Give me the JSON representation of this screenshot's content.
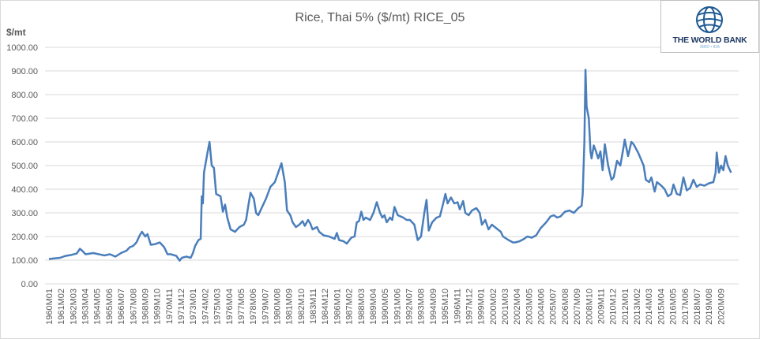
{
  "chart_data": {
    "type": "line",
    "title": "Rice, Thai 5%  ($/mt) RICE_05",
    "ylabel": "$/mt",
    "xlabel": "",
    "ylim": [
      0,
      1000
    ],
    "yticks": [
      "0.00",
      "100.00",
      "200.00",
      "300.00",
      "400.00",
      "500.00",
      "600.00",
      "700.00",
      "800.00",
      "900.00",
      "1000.00"
    ],
    "grid": "horizontal",
    "xticks": [
      "1960M01",
      "1961M02",
      "1962M03",
      "1963M04",
      "1964M05",
      "1965M06",
      "1966M07",
      "1967M08",
      "1968M09",
      "1969M10",
      "1970M11",
      "1971M12",
      "1973M01",
      "1974M02",
      "1975M03",
      "1976M04",
      "1977M05",
      "1978M06",
      "1979M07",
      "1980M08",
      "1981M09",
      "1982M10",
      "1983M11",
      "1984M12",
      "1986M01",
      "1987M02",
      "1988M03",
      "1989M04",
      "1990M05",
      "1991M06",
      "1992M07",
      "1993M08",
      "1994M09",
      "1995M10",
      "1996M11",
      "1997M12",
      "1999M01",
      "2000M02",
      "2001M03",
      "2002M04",
      "2003M05",
      "2004M06",
      "2005M07",
      "2006M08",
      "2007M09",
      "2008M10",
      "2009M11",
      "2010M12",
      "2012M01",
      "2013M02",
      "2014M03",
      "2015M04",
      "2016M05",
      "2017M06",
      "2018M07",
      "2019M08",
      "2020M09"
    ],
    "series": [
      {
        "name": "RICE_05",
        "color": "#4a7ebb",
        "points_year_value": [
          [
            1960.0,
            105
          ],
          [
            1961.0,
            110
          ],
          [
            1961.5,
            118
          ],
          [
            1962.0,
            122
          ],
          [
            1962.5,
            128
          ],
          [
            1962.8,
            148
          ],
          [
            1963.0,
            140
          ],
          [
            1963.3,
            125
          ],
          [
            1964.0,
            130
          ],
          [
            1965.0,
            120
          ],
          [
            1965.5,
            125
          ],
          [
            1966.0,
            115
          ],
          [
            1966.5,
            130
          ],
          [
            1967.0,
            140
          ],
          [
            1967.3,
            155
          ],
          [
            1967.6,
            160
          ],
          [
            1967.9,
            175
          ],
          [
            1968.2,
            205
          ],
          [
            1968.4,
            220
          ],
          [
            1968.7,
            200
          ],
          [
            1968.9,
            210
          ],
          [
            1969.2,
            165
          ],
          [
            1969.6,
            168
          ],
          [
            1970.0,
            175
          ],
          [
            1970.4,
            155
          ],
          [
            1970.7,
            125
          ],
          [
            1971.0,
            125
          ],
          [
            1971.5,
            118
          ],
          [
            1971.8,
            98
          ],
          [
            1972.0,
            110
          ],
          [
            1972.4,
            115
          ],
          [
            1972.8,
            110
          ],
          [
            1973.0,
            130
          ],
          [
            1973.2,
            160
          ],
          [
            1973.5,
            185
          ],
          [
            1973.7,
            190
          ],
          [
            1973.8,
            370
          ],
          [
            1973.9,
            340
          ],
          [
            1974.0,
            470
          ],
          [
            1974.3,
            550
          ],
          [
            1974.5,
            600
          ],
          [
            1974.7,
            500
          ],
          [
            1974.9,
            490
          ],
          [
            1975.1,
            380
          ],
          [
            1975.5,
            370
          ],
          [
            1975.7,
            305
          ],
          [
            1975.9,
            335
          ],
          [
            1976.1,
            280
          ],
          [
            1976.4,
            230
          ],
          [
            1976.8,
            220
          ],
          [
            1977.2,
            240
          ],
          [
            1977.6,
            250
          ],
          [
            1977.8,
            270
          ],
          [
            1978.0,
            330
          ],
          [
            1978.2,
            385
          ],
          [
            1978.5,
            360
          ],
          [
            1978.7,
            300
          ],
          [
            1978.9,
            290
          ],
          [
            1979.2,
            320
          ],
          [
            1979.6,
            360
          ],
          [
            1980.0,
            410
          ],
          [
            1980.4,
            430
          ],
          [
            1980.7,
            470
          ],
          [
            1981.0,
            510
          ],
          [
            1981.3,
            430
          ],
          [
            1981.5,
            310
          ],
          [
            1981.8,
            290
          ],
          [
            1982.0,
            260
          ],
          [
            1982.3,
            240
          ],
          [
            1982.6,
            250
          ],
          [
            1982.9,
            265
          ],
          [
            1983.1,
            245
          ],
          [
            1983.4,
            270
          ],
          [
            1983.6,
            255
          ],
          [
            1983.8,
            230
          ],
          [
            1984.2,
            240
          ],
          [
            1984.4,
            220
          ],
          [
            1984.8,
            205
          ],
          [
            1985.3,
            200
          ],
          [
            1985.8,
            190
          ],
          [
            1986.0,
            215
          ],
          [
            1986.2,
            185
          ],
          [
            1986.6,
            180
          ],
          [
            1986.9,
            170
          ],
          [
            1987.3,
            195
          ],
          [
            1987.6,
            200
          ],
          [
            1987.8,
            260
          ],
          [
            1988.0,
            265
          ],
          [
            1988.2,
            305
          ],
          [
            1988.4,
            270
          ],
          [
            1988.6,
            280
          ],
          [
            1989.0,
            270
          ],
          [
            1989.3,
            300
          ],
          [
            1989.6,
            345
          ],
          [
            1989.9,
            300
          ],
          [
            1990.1,
            280
          ],
          [
            1990.3,
            290
          ],
          [
            1990.5,
            260
          ],
          [
            1990.8,
            280
          ],
          [
            1991.0,
            270
          ],
          [
            1991.2,
            325
          ],
          [
            1991.5,
            290
          ],
          [
            1992.0,
            280
          ],
          [
            1992.3,
            270
          ],
          [
            1992.6,
            270
          ],
          [
            1993.0,
            250
          ],
          [
            1993.3,
            185
          ],
          [
            1993.6,
            200
          ],
          [
            1993.9,
            300
          ],
          [
            1994.1,
            355
          ],
          [
            1994.3,
            225
          ],
          [
            1994.6,
            260
          ],
          [
            1995.0,
            280
          ],
          [
            1995.3,
            285
          ],
          [
            1995.6,
            340
          ],
          [
            1995.8,
            380
          ],
          [
            1996.0,
            340
          ],
          [
            1996.3,
            365
          ],
          [
            1996.6,
            340
          ],
          [
            1996.9,
            345
          ],
          [
            1997.1,
            315
          ],
          [
            1997.4,
            350
          ],
          [
            1997.6,
            300
          ],
          [
            1997.9,
            290
          ],
          [
            1998.2,
            310
          ],
          [
            1998.6,
            320
          ],
          [
            1998.9,
            300
          ],
          [
            1999.1,
            250
          ],
          [
            1999.4,
            270
          ],
          [
            1999.7,
            230
          ],
          [
            2000.0,
            250
          ],
          [
            2000.4,
            235
          ],
          [
            2000.8,
            220
          ],
          [
            2001.0,
            200
          ],
          [
            2001.5,
            185
          ],
          [
            2001.9,
            175
          ],
          [
            2002.1,
            175
          ],
          [
            2002.5,
            180
          ],
          [
            2002.9,
            190
          ],
          [
            2003.2,
            200
          ],
          [
            2003.6,
            195
          ],
          [
            2004.0,
            205
          ],
          [
            2004.4,
            235
          ],
          [
            2004.9,
            260
          ],
          [
            2005.3,
            285
          ],
          [
            2005.6,
            290
          ],
          [
            2005.9,
            280
          ],
          [
            2006.2,
            285
          ],
          [
            2006.6,
            305
          ],
          [
            2007.0,
            310
          ],
          [
            2007.4,
            300
          ],
          [
            2007.8,
            320
          ],
          [
            2008.1,
            330
          ],
          [
            2008.2,
            380
          ],
          [
            2008.35,
            600
          ],
          [
            2008.45,
            905
          ],
          [
            2008.55,
            750
          ],
          [
            2008.75,
            700
          ],
          [
            2008.9,
            560
          ],
          [
            2009.0,
            530
          ],
          [
            2009.2,
            585
          ],
          [
            2009.4,
            560
          ],
          [
            2009.6,
            530
          ],
          [
            2009.8,
            560
          ],
          [
            2010.0,
            480
          ],
          [
            2010.2,
            590
          ],
          [
            2010.5,
            500
          ],
          [
            2010.8,
            440
          ],
          [
            2011.0,
            450
          ],
          [
            2011.3,
            520
          ],
          [
            2011.6,
            500
          ],
          [
            2011.9,
            580
          ],
          [
            2012.0,
            610
          ],
          [
            2012.3,
            540
          ],
          [
            2012.6,
            600
          ],
          [
            2012.8,
            590
          ],
          [
            2013.2,
            555
          ],
          [
            2013.7,
            500
          ],
          [
            2013.9,
            440
          ],
          [
            2014.2,
            430
          ],
          [
            2014.4,
            450
          ],
          [
            2014.7,
            390
          ],
          [
            2014.9,
            430
          ],
          [
            2015.3,
            415
          ],
          [
            2015.6,
            400
          ],
          [
            2015.9,
            370
          ],
          [
            2016.2,
            380
          ],
          [
            2016.4,
            420
          ],
          [
            2016.7,
            380
          ],
          [
            2017.0,
            375
          ],
          [
            2017.3,
            450
          ],
          [
            2017.6,
            395
          ],
          [
            2017.9,
            405
          ],
          [
            2018.2,
            440
          ],
          [
            2018.5,
            410
          ],
          [
            2018.8,
            420
          ],
          [
            2019.2,
            415
          ],
          [
            2019.6,
            425
          ],
          [
            2020.0,
            430
          ],
          [
            2020.2,
            470
          ],
          [
            2020.3,
            555
          ],
          [
            2020.5,
            470
          ],
          [
            2020.7,
            500
          ],
          [
            2020.9,
            480
          ],
          [
            2021.1,
            540
          ],
          [
            2021.3,
            500
          ],
          [
            2021.6,
            470
          ]
        ]
      }
    ]
  },
  "logo": {
    "name": "THE WORLD BANK",
    "sub": "IBRD • IDA"
  }
}
